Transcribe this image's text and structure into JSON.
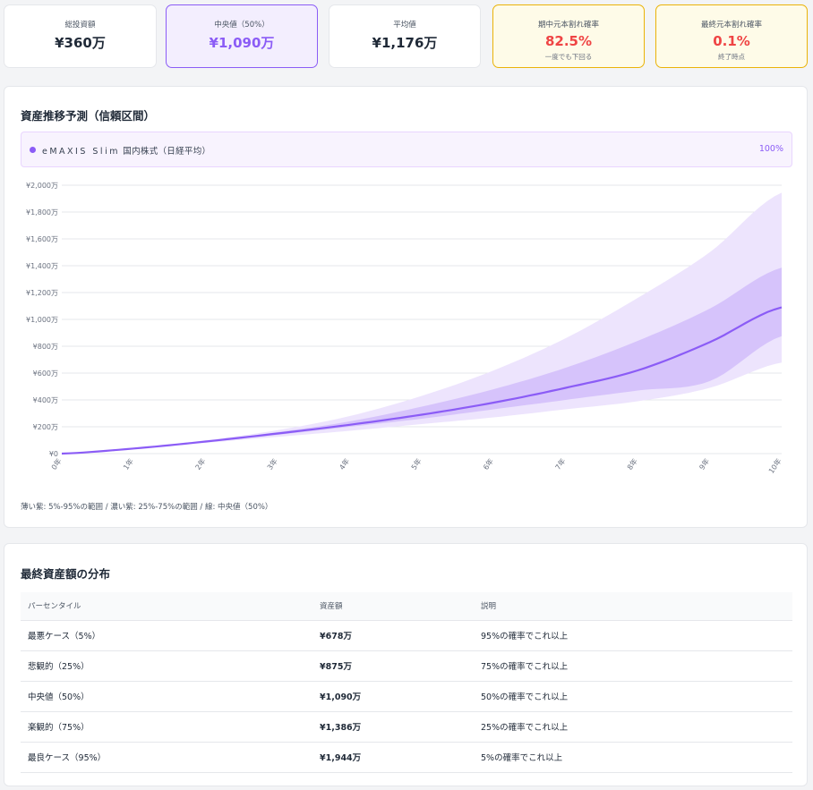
{
  "stats": {
    "total_invest": {
      "label": "総投資額",
      "value": "¥360万"
    },
    "median": {
      "label": "中央値（50%）",
      "value": "¥1,090万"
    },
    "mean": {
      "label": "平均値",
      "value": "¥1,176万"
    },
    "loss_midway": {
      "label": "期中元本割れ確率",
      "value": "82.5%",
      "sub": "一度でも下回る"
    },
    "loss_final": {
      "label": "最終元本割れ確率",
      "value": "0.1%",
      "sub": "終了時点"
    }
  },
  "projection": {
    "title": "資産推移予測（信頼区間）",
    "legend": {
      "fund": "eMAXIS Slim",
      "category": "国内株式（日経平均）",
      "pct": "100%"
    },
    "note": "薄い紫: 5%-95%の範囲 / 濃い紫: 25%-75%の範囲 / 線: 中央値（50%）"
  },
  "chart_data": {
    "type": "area",
    "x": [
      0,
      1,
      2,
      3,
      4,
      5,
      6,
      7,
      8,
      9,
      10
    ],
    "x_tick_labels": [
      "0年",
      "1年",
      "2年",
      "3年",
      "4年",
      "5年",
      "6年",
      "7年",
      "8年",
      "9年",
      "10年"
    ],
    "y_tick_labels": [
      "¥0",
      "¥200万",
      "¥400万",
      "¥600万",
      "¥800万",
      "¥1,000万",
      "¥1,200万",
      "¥1,400万",
      "¥1,600万",
      "¥1,800万",
      "¥2,000万"
    ],
    "ylim": [
      0,
      2000
    ],
    "y_unit": "万円",
    "series": [
      {
        "values": [
          0,
          36,
          80,
          125,
          170,
          220,
          270,
          330,
          390,
          490,
          678
        ]
      },
      {
        "values": [
          0,
          37,
          85,
          140,
          200,
          260,
          330,
          400,
          470,
          540,
          875
        ]
      },
      {
        "values": [
          0,
          38,
          90,
          150,
          215,
          290,
          380,
          490,
          620,
          830,
          1090
        ]
      },
      {
        "values": [
          0,
          39,
          95,
          160,
          240,
          350,
          480,
          640,
          840,
          1080,
          1386
        ]
      },
      {
        "values": [
          0,
          40,
          100,
          175,
          280,
          430,
          620,
          860,
          1160,
          1500,
          1944
        ]
      }
    ],
    "colors": {
      "band_outer": "#ede4fd",
      "band_inner": "#d6c3fb",
      "median": "#8b5cf6",
      "grid": "#e5e7eb"
    },
    "grid": true
  },
  "distribution": {
    "title": "最終資産額の分布",
    "columns": [
      "パーセンタイル",
      "資産額",
      "説明"
    ],
    "rows": [
      {
        "pct": "最悪ケース（5%）",
        "amount": "¥678万",
        "desc": "95%の確率でこれ以上"
      },
      {
        "pct": "悲観的（25%）",
        "amount": "¥875万",
        "desc": "75%の確率でこれ以上"
      },
      {
        "pct": "中央値（50%）",
        "amount": "¥1,090万",
        "desc": "50%の確率でこれ以上"
      },
      {
        "pct": "楽観的（75%）",
        "amount": "¥1,386万",
        "desc": "25%の確率でこれ以上"
      },
      {
        "pct": "最良ケース（95%）",
        "amount": "¥1,944万",
        "desc": "5%の確率でこれ以上"
      }
    ]
  }
}
